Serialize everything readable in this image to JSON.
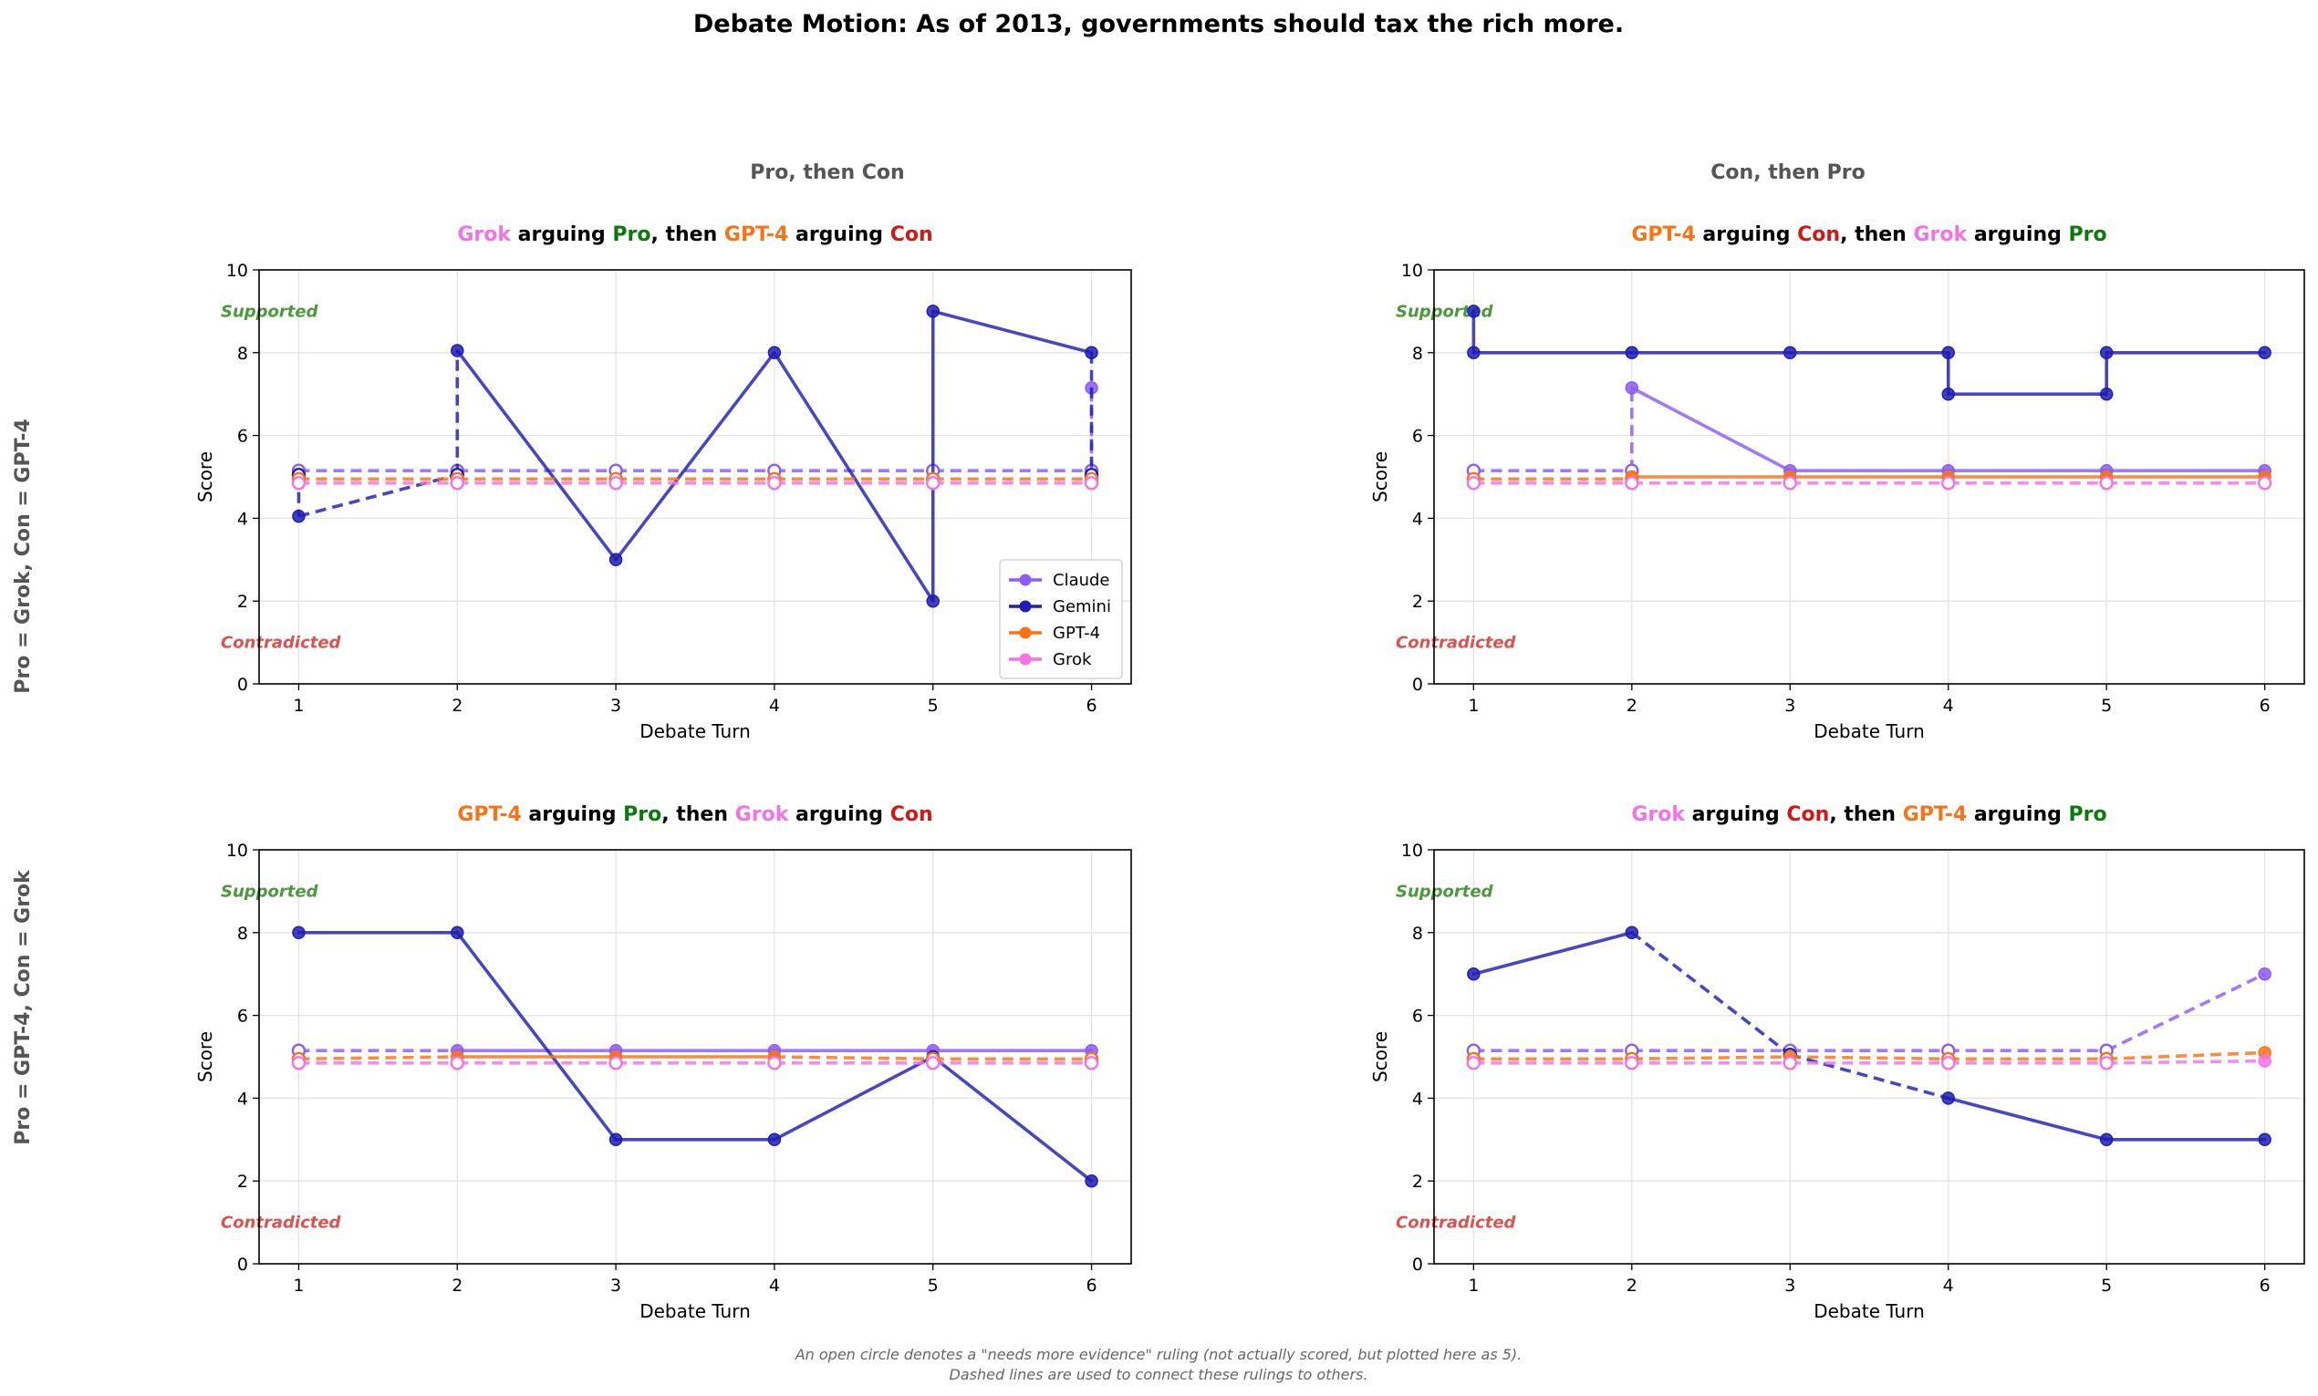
{
  "figure": {
    "title": "Debate Motion: As of 2013, governments should tax the rich more.",
    "column_headers": [
      "Pro, then Con",
      "Con, then Pro"
    ],
    "row_labels": [
      "Pro = Grok, Con = GPT-4",
      "Pro = GPT-4, Con = Grok"
    ],
    "footnote_lines": [
      "An open circle denotes a \"needs more evidence\" ruling (not actually scored, but plotted here as 5).",
      "Dashed lines are used to connect these rulings to others."
    ],
    "annotations": {
      "supported": "Supported",
      "contradicted": "Contradicted"
    }
  },
  "colors": {
    "Claude": "#8b5cf6",
    "Gemini": "#1f1fb4",
    "GPT-4": "#f97316",
    "Grok": "#f472e6",
    "Pro": "#0a7a0a",
    "Con": "#d41616",
    "text": "#000000"
  },
  "legend": {
    "placement": "lower right of first panel",
    "items": [
      {
        "name": "Claude",
        "color": "#8b5cf6"
      },
      {
        "name": "Gemini",
        "color": "#1f1fb4"
      },
      {
        "name": "GPT-4",
        "color": "#f97316"
      },
      {
        "name": "Grok",
        "color": "#f472e6"
      }
    ]
  },
  "chart_data": [
    {
      "type": "line",
      "title_parts": [
        {
          "text": "Grok",
          "color": "Grok"
        },
        {
          "text": " arguing ",
          "color": "text"
        },
        {
          "text": "Pro",
          "color": "Pro"
        },
        {
          "text": ", then ",
          "color": "text"
        },
        {
          "text": "GPT-4",
          "color": "GPT-4"
        },
        {
          "text": " arguing ",
          "color": "text"
        },
        {
          "text": "Con",
          "color": "Con"
        }
      ],
      "xlabel": "Debate Turn",
      "ylabel": "Score",
      "xlim": [
        0.75,
        6.25
      ],
      "ylim": [
        0,
        10
      ],
      "xticks": [
        1,
        2,
        3,
        4,
        5,
        6
      ],
      "yticks": [
        0,
        2,
        4,
        6,
        8,
        10
      ],
      "grid": true,
      "series": [
        {
          "name": "Claude",
          "points": [
            [
              1,
              5.15,
              "open"
            ],
            [
              2,
              5.15,
              "open"
            ],
            [
              3,
              5.15,
              "open"
            ],
            [
              4,
              5.15,
              "open"
            ],
            [
              5,
              5.15,
              "open"
            ],
            [
              6,
              5.15,
              "open"
            ],
            [
              6,
              7.15,
              "filled"
            ]
          ]
        },
        {
          "name": "Gemini",
          "points": [
            [
              1,
              5.05,
              "open"
            ],
            [
              1,
              4.05,
              "filled"
            ],
            [
              2,
              5.05,
              "open"
            ],
            [
              2,
              8.05,
              "filled"
            ],
            [
              3,
              3,
              "filled"
            ],
            [
              4,
              8,
              "filled"
            ],
            [
              5,
              2,
              "filled"
            ],
            [
              5,
              9,
              "filled"
            ],
            [
              6,
              8,
              "filled"
            ],
            [
              6,
              5.05,
              "open"
            ]
          ]
        },
        {
          "name": "GPT-4",
          "points": [
            [
              1,
              4.95,
              "open"
            ],
            [
              2,
              4.95,
              "open"
            ],
            [
              3,
              4.95,
              "open"
            ],
            [
              4,
              4.95,
              "open"
            ],
            [
              5,
              4.95,
              "open"
            ],
            [
              6,
              4.95,
              "open"
            ]
          ]
        },
        {
          "name": "Grok",
          "points": [
            [
              1,
              4.85,
              "open"
            ],
            [
              2,
              4.85,
              "open"
            ],
            [
              3,
              4.85,
              "open"
            ],
            [
              4,
              4.85,
              "open"
            ],
            [
              5,
              4.85,
              "open"
            ],
            [
              6,
              4.85,
              "open"
            ]
          ]
        }
      ]
    },
    {
      "type": "line",
      "title_parts": [
        {
          "text": "GPT-4",
          "color": "GPT-4"
        },
        {
          "text": " arguing ",
          "color": "text"
        },
        {
          "text": "Con",
          "color": "Con"
        },
        {
          "text": ", then ",
          "color": "text"
        },
        {
          "text": "Grok",
          "color": "Grok"
        },
        {
          "text": " arguing ",
          "color": "text"
        },
        {
          "text": "Pro",
          "color": "Pro"
        }
      ],
      "xlabel": "Debate Turn",
      "ylabel": "Score",
      "xlim": [
        0.75,
        6.25
      ],
      "ylim": [
        0,
        10
      ],
      "xticks": [
        1,
        2,
        3,
        4,
        5,
        6
      ],
      "yticks": [
        0,
        2,
        4,
        6,
        8,
        10
      ],
      "grid": true,
      "series": [
        {
          "name": "Claude",
          "points": [
            [
              1,
              5.15,
              "open"
            ],
            [
              2,
              5.15,
              "open"
            ],
            [
              2,
              7.15,
              "filled"
            ],
            [
              3,
              5.15,
              "filled"
            ],
            [
              4,
              5.15,
              "filled"
            ],
            [
              5,
              5.15,
              "filled"
            ],
            [
              6,
              5.15,
              "filled"
            ]
          ]
        },
        {
          "name": "Gemini",
          "points": [
            [
              1,
              9,
              "filled"
            ],
            [
              1,
              8,
              "filled"
            ],
            [
              2,
              8,
              "filled"
            ],
            [
              3,
              8,
              "filled"
            ],
            [
              4,
              8,
              "filled"
            ],
            [
              4,
              7,
              "filled"
            ],
            [
              5,
              7,
              "filled"
            ],
            [
              5,
              8,
              "filled"
            ],
            [
              6,
              8,
              "filled"
            ]
          ]
        },
        {
          "name": "GPT-4",
          "points": [
            [
              1,
              4.95,
              "open"
            ],
            [
              2,
              4.95,
              "open"
            ],
            [
              2,
              5,
              "filled"
            ],
            [
              3,
              5,
              "filled"
            ],
            [
              4,
              5,
              "filled"
            ],
            [
              5,
              5,
              "filled"
            ],
            [
              6,
              5,
              "filled"
            ]
          ]
        },
        {
          "name": "Grok",
          "points": [
            [
              1,
              4.85,
              "open"
            ],
            [
              2,
              4.85,
              "open"
            ],
            [
              3,
              4.85,
              "open"
            ],
            [
              4,
              4.85,
              "open"
            ],
            [
              5,
              4.85,
              "open"
            ],
            [
              6,
              4.85,
              "open"
            ]
          ]
        }
      ]
    },
    {
      "type": "line",
      "title_parts": [
        {
          "text": "GPT-4",
          "color": "GPT-4"
        },
        {
          "text": " arguing ",
          "color": "text"
        },
        {
          "text": "Pro",
          "color": "Pro"
        },
        {
          "text": ", then ",
          "color": "text"
        },
        {
          "text": "Grok",
          "color": "Grok"
        },
        {
          "text": " arguing ",
          "color": "text"
        },
        {
          "text": "Con",
          "color": "Con"
        }
      ],
      "xlabel": "Debate Turn",
      "ylabel": "Score",
      "xlim": [
        0.75,
        6.25
      ],
      "ylim": [
        0,
        10
      ],
      "xticks": [
        1,
        2,
        3,
        4,
        5,
        6
      ],
      "yticks": [
        0,
        2,
        4,
        6,
        8,
        10
      ],
      "grid": true,
      "series": [
        {
          "name": "Claude",
          "points": [
            [
              1,
              5.15,
              "open"
            ],
            [
              2,
              5.15,
              "filled"
            ],
            [
              3,
              5.15,
              "filled"
            ],
            [
              4,
              5.15,
              "filled"
            ],
            [
              5,
              5.15,
              "filled"
            ],
            [
              6,
              5.15,
              "filled"
            ]
          ]
        },
        {
          "name": "Gemini",
          "points": [
            [
              1,
              8,
              "filled"
            ],
            [
              2,
              8,
              "filled"
            ],
            [
              3,
              3,
              "filled"
            ],
            [
              4,
              3,
              "filled"
            ],
            [
              5,
              5,
              "filled"
            ],
            [
              6,
              2,
              "filled"
            ]
          ]
        },
        {
          "name": "GPT-4",
          "points": [
            [
              1,
              4.95,
              "open"
            ],
            [
              2,
              5,
              "filled"
            ],
            [
              3,
              5,
              "filled"
            ],
            [
              4,
              5,
              "filled"
            ],
            [
              5,
              4.95,
              "open"
            ],
            [
              6,
              4.95,
              "open"
            ]
          ]
        },
        {
          "name": "Grok",
          "points": [
            [
              1,
              4.85,
              "open"
            ],
            [
              2,
              4.85,
              "open"
            ],
            [
              3,
              4.85,
              "open"
            ],
            [
              4,
              4.85,
              "open"
            ],
            [
              5,
              4.85,
              "open"
            ],
            [
              6,
              4.85,
              "open"
            ]
          ]
        }
      ]
    },
    {
      "type": "line",
      "title_parts": [
        {
          "text": "Grok",
          "color": "Grok"
        },
        {
          "text": " arguing ",
          "color": "text"
        },
        {
          "text": "Con",
          "color": "Con"
        },
        {
          "text": ", then ",
          "color": "text"
        },
        {
          "text": "GPT-4",
          "color": "GPT-4"
        },
        {
          "text": " arguing ",
          "color": "text"
        },
        {
          "text": "Pro",
          "color": "Pro"
        }
      ],
      "xlabel": "Debate Turn",
      "ylabel": "Score",
      "xlim": [
        0.75,
        6.25
      ],
      "ylim": [
        0,
        10
      ],
      "xticks": [
        1,
        2,
        3,
        4,
        5,
        6
      ],
      "yticks": [
        0,
        2,
        4,
        6,
        8,
        10
      ],
      "grid": true,
      "series": [
        {
          "name": "Claude",
          "points": [
            [
              1,
              5.15,
              "open"
            ],
            [
              2,
              5.15,
              "open"
            ],
            [
              3,
              5.15,
              "open"
            ],
            [
              4,
              5.15,
              "open"
            ],
            [
              5,
              5.15,
              "open"
            ],
            [
              6,
              7,
              "filled"
            ]
          ]
        },
        {
          "name": "Gemini",
          "points": [
            [
              1,
              7,
              "filled"
            ],
            [
              2,
              8,
              "filled"
            ],
            [
              3,
              5.05,
              "open"
            ],
            [
              4,
              4,
              "filled"
            ],
            [
              5,
              3,
              "filled"
            ],
            [
              6,
              3,
              "filled"
            ]
          ]
        },
        {
          "name": "GPT-4",
          "points": [
            [
              1,
              4.95,
              "open"
            ],
            [
              2,
              4.95,
              "open"
            ],
            [
              3,
              5,
              "filled"
            ],
            [
              4,
              4.95,
              "open"
            ],
            [
              5,
              4.95,
              "open"
            ],
            [
              6,
              5.1,
              "filled"
            ]
          ]
        },
        {
          "name": "Grok",
          "points": [
            [
              1,
              4.85,
              "open"
            ],
            [
              2,
              4.85,
              "open"
            ],
            [
              3,
              4.85,
              "open"
            ],
            [
              4,
              4.85,
              "open"
            ],
            [
              5,
              4.85,
              "open"
            ],
            [
              6,
              4.9,
              "filled"
            ]
          ]
        }
      ]
    }
  ]
}
